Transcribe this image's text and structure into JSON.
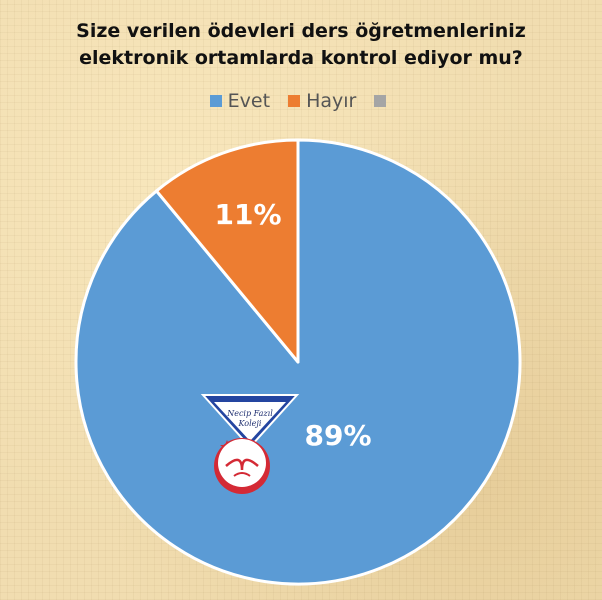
{
  "chart_data": {
    "type": "pie",
    "title_lines": [
      "Size verilen ödevleri ders öğretmenleriniz",
      "elektronik ortamlarda kontrol ediyor mu?"
    ],
    "categories": [
      "Evet",
      "Hayır",
      ""
    ],
    "values": [
      89,
      11,
      0
    ],
    "labels": [
      "89%",
      "11%",
      ""
    ],
    "colors": [
      "#5b9bd5",
      "#ed7d31",
      "#a5a5a5"
    ],
    "legend_position": "top"
  },
  "logo": {
    "text_line1": "Necip Fazıl",
    "text_line2": "Koleji"
  }
}
